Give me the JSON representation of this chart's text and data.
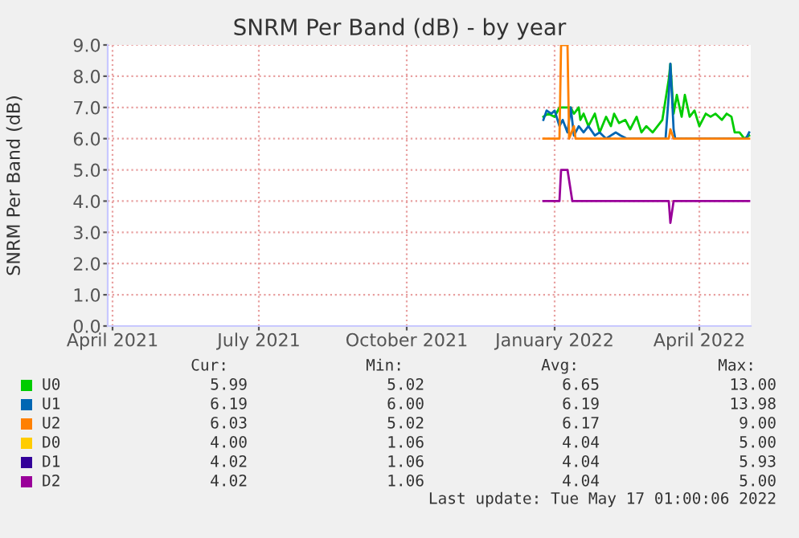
{
  "chart_data": {
    "type": "line",
    "title": "SNRM Per Band (dB) - by year",
    "ylabel": "SNRM Per Band (dB)",
    "series": [
      {
        "name": "U0",
        "color": "#00cc00",
        "x": [
          "2022-01-08",
          "2022-01-11",
          "2022-01-15",
          "2022-01-18",
          "2022-01-25",
          "2022-01-27",
          "2022-01-30",
          "2022-01-31",
          "2022-02-02",
          "2022-02-05",
          "2022-02-09",
          "2022-02-12",
          "2022-02-16",
          "2022-02-19",
          "2022-02-21",
          "2022-02-24",
          "2022-02-28",
          "2022-03-03",
          "2022-03-07",
          "2022-03-10",
          "2022-03-13",
          "2022-03-17",
          "2022-03-20",
          "2022-03-23",
          "2022-03-27",
          "2022-03-28",
          "2022-03-30",
          "2022-04-01",
          "2022-04-04",
          "2022-04-06",
          "2022-04-09",
          "2022-04-12",
          "2022-04-15",
          "2022-04-19",
          "2022-04-22",
          "2022-04-25",
          "2022-04-29",
          "2022-05-02",
          "2022-05-05",
          "2022-05-07",
          "2022-05-10",
          "2022-05-13",
          "2022-05-16"
        ],
        "values": [
          6.7,
          6.8,
          6.7,
          7.0,
          7.0,
          6.8,
          7.0,
          6.6,
          6.8,
          6.4,
          6.8,
          6.2,
          6.7,
          6.4,
          6.8,
          6.5,
          6.6,
          6.3,
          6.7,
          6.2,
          6.4,
          6.2,
          6.4,
          6.6,
          7.9,
          8.4,
          6.8,
          7.4,
          6.7,
          7.4,
          6.7,
          6.9,
          6.4,
          6.8,
          6.7,
          6.8,
          6.6,
          6.8,
          6.7,
          6.2,
          6.2,
          6.0,
          6.1
        ]
      },
      {
        "name": "U1",
        "color": "#0066b3",
        "x": [
          "2022-01-08",
          "2022-01-10",
          "2022-01-13",
          "2022-01-15",
          "2022-01-18",
          "2022-01-20",
          "2022-01-23",
          "2022-01-25",
          "2022-01-27",
          "2022-01-30",
          "2022-02-02",
          "2022-02-05",
          "2022-02-09",
          "2022-02-12",
          "2022-02-16",
          "2022-02-22",
          "2022-02-25",
          "2022-03-01",
          "2022-03-25",
          "2022-03-27",
          "2022-03-28",
          "2022-03-30",
          "2022-03-31",
          "2022-05-14",
          "2022-05-16"
        ],
        "values": [
          6.6,
          6.9,
          6.8,
          6.9,
          6.4,
          6.6,
          6.2,
          7.0,
          6.1,
          6.4,
          6.2,
          6.4,
          6.1,
          6.2,
          6.0,
          6.2,
          6.1,
          6.0,
          6.0,
          7.4,
          8.4,
          6.3,
          6.0,
          6.0,
          6.2
        ]
      },
      {
        "name": "U2",
        "color": "#ff8000",
        "x": [
          "2022-01-08",
          "2022-01-18",
          "2022-01-19",
          "2022-01-23",
          "2022-01-24",
          "2022-01-27",
          "2022-01-28",
          "2022-03-27",
          "2022-03-28",
          "2022-03-30",
          "2022-05-16"
        ],
        "values": [
          6.0,
          6.0,
          9.0,
          9.0,
          6.0,
          6.4,
          6.0,
          6.0,
          6.3,
          6.0,
          6.0
        ]
      },
      {
        "name": "D0",
        "color": "#ffcc00"
      },
      {
        "name": "D1",
        "color": "#330099"
      },
      {
        "name": "D2",
        "color": "#990099",
        "x": [
          "2022-01-08",
          "2022-01-18",
          "2022-01-19",
          "2022-01-23",
          "2022-01-26",
          "2022-03-27",
          "2022-03-28",
          "2022-03-30",
          "2022-05-16"
        ],
        "values": [
          4.0,
          4.0,
          5.0,
          5.0,
          4.0,
          4.0,
          3.3,
          4.0,
          4.0
        ]
      }
    ],
    "xlim": [
      "2021-04-12",
      "2022-05-17"
    ],
    "xticks": [
      {
        "value": "2021-04-15",
        "label": "April 2021"
      },
      {
        "value": "2021-07-15",
        "label": "July 2021"
      },
      {
        "value": "2021-10-15",
        "label": "October 2021"
      },
      {
        "value": "2022-01-15",
        "label": "January 2022"
      },
      {
        "value": "2022-04-15",
        "label": "April 2022"
      }
    ],
    "ylim": [
      0,
      9
    ],
    "yticks": [
      {
        "value": 0,
        "label": "0.0"
      },
      {
        "value": 1,
        "label": "1.0"
      },
      {
        "value": 2,
        "label": "2.0"
      },
      {
        "value": 3,
        "label": "3.0"
      },
      {
        "value": 4,
        "label": "4.0"
      },
      {
        "value": 5,
        "label": "5.0"
      },
      {
        "value": 6,
        "label": "6.0"
      },
      {
        "value": 7,
        "label": "7.0"
      },
      {
        "value": 8,
        "label": "8.0"
      },
      {
        "value": 9,
        "label": "9.0"
      }
    ],
    "grid": true,
    "legend": "bottom",
    "marker": "none",
    "line_style": "solid",
    "annotations": [
      "Cur:",
      "Min:",
      "Avg:",
      "Max:",
      "5.99",
      "5.02",
      "6.65",
      "13.00",
      "6.19",
      "6.00",
      "6.19",
      "13.98",
      "6.03",
      "5.02",
      "6.17",
      "9.00",
      "4.00",
      "1.06",
      "4.04",
      "5.00",
      "4.02",
      "1.06",
      "4.04",
      "5.93",
      "4.02",
      "1.06",
      "4.04",
      "5.00",
      "Last update: Tue May 17 01:00:06 2022"
    ]
  }
}
